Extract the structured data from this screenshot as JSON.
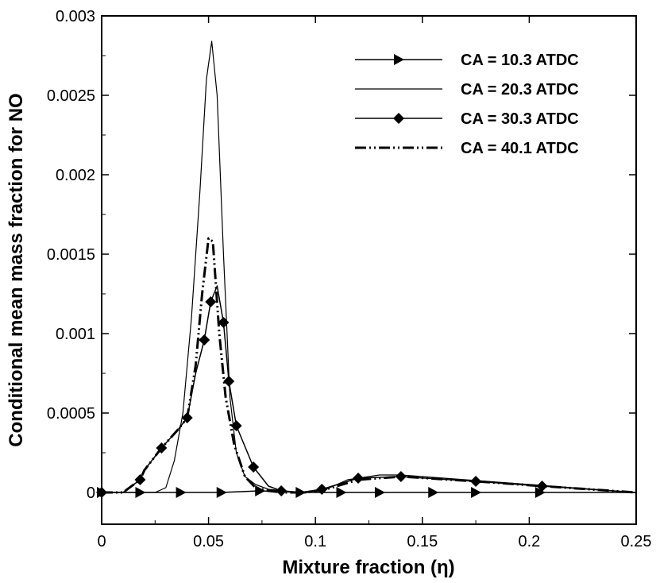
{
  "chart_data": {
    "type": "line",
    "xlabel": "Mixture fraction (η)",
    "ylabel": "Conditional mean mass fraction for NO",
    "xlim": [
      0,
      0.25
    ],
    "ylim": [
      -0.0002,
      0.003
    ],
    "x_ticks": [
      "0",
      "0.05",
      "0.1",
      "0.15",
      "0.2",
      "0.25"
    ],
    "y_ticks": [
      "0",
      "0.0005",
      "0.001",
      "0.0015",
      "0.002",
      "0.0025",
      "0.003"
    ],
    "grid": false,
    "legend_position": "top-right",
    "series": [
      {
        "name": "CA = 10.3 ATDC",
        "line_style": "solid",
        "marker": "triangle-right",
        "x": [
          0,
          0.018,
          0.037,
          0.056,
          0.074,
          0.093,
          0.112,
          0.13,
          0.155,
          0.175,
          0.205,
          0.25
        ],
        "y": [
          0,
          0,
          0,
          0,
          1e-05,
          0,
          0,
          0,
          0,
          0,
          0,
          0
        ],
        "marker_x": [
          0,
          0.018,
          0.037,
          0.056,
          0.074,
          0.093,
          0.112,
          0.13,
          0.155,
          0.175,
          0.205
        ]
      },
      {
        "name": "CA = 20.3 ATDC",
        "line_style": "solid-thin",
        "marker": "none",
        "x": [
          0,
          0.025,
          0.03,
          0.034,
          0.038,
          0.042,
          0.046,
          0.049,
          0.0515,
          0.054,
          0.057,
          0.06,
          0.063,
          0.067,
          0.072,
          0.078,
          0.085,
          0.095,
          0.105,
          0.115,
          0.13,
          0.14,
          0.16,
          0.18,
          0.2,
          0.22,
          0.25
        ],
        "y": [
          0,
          0,
          3e-05,
          0.0002,
          0.0005,
          0.0011,
          0.0019,
          0.0026,
          0.00284,
          0.0025,
          0.0015,
          0.0006,
          0.00025,
          0.0001,
          5e-05,
          2e-05,
          1e-05,
          0,
          2e-05,
          8e-05,
          0.00011,
          0.00011,
          9e-05,
          7e-05,
          5e-05,
          3e-05,
          0
        ]
      },
      {
        "name": "CA = 30.3 ATDC",
        "line_style": "solid",
        "marker": "diamond",
        "x": [
          0,
          0.01,
          0.018,
          0.02,
          0.028,
          0.036,
          0.04,
          0.044,
          0.048,
          0.051,
          0.054,
          0.057,
          0.0595,
          0.063,
          0.071,
          0.078,
          0.084,
          0.093,
          0.103,
          0.12,
          0.14,
          0.175,
          0.206,
          0.25
        ],
        "y": [
          0,
          0,
          8e-05,
          0.00014,
          0.00028,
          0.0004,
          0.00047,
          0.00075,
          0.00096,
          0.0012,
          0.0013,
          0.00107,
          0.0007,
          0.00042,
          0.00016,
          4e-05,
          1e-05,
          0,
          2e-05,
          9e-05,
          0.0001,
          7e-05,
          4e-05,
          0
        ],
        "marker_x": [
          0,
          0.018,
          0.028,
          0.04,
          0.048,
          0.051,
          0.057,
          0.0595,
          0.063,
          0.071,
          0.084,
          0.103,
          0.12,
          0.14,
          0.175,
          0.206
        ]
      },
      {
        "name": "CA = 40.1 ATDC",
        "line_style": "dash-dot-dot",
        "marker": "none",
        "x": [
          0,
          0.01,
          0.018,
          0.02,
          0.028,
          0.036,
          0.04,
          0.044,
          0.047,
          0.05,
          0.052,
          0.055,
          0.058,
          0.062,
          0.067,
          0.072,
          0.078,
          0.085,
          0.095,
          0.105,
          0.12,
          0.14,
          0.175,
          0.206,
          0.25
        ],
        "y": [
          0,
          0,
          8e-05,
          0.00014,
          0.00028,
          0.0004,
          0.00047,
          0.0008,
          0.00125,
          0.0016,
          0.00158,
          0.001,
          0.0006,
          0.0003,
          0.0001,
          3e-05,
          1e-05,
          0,
          0,
          2e-05,
          8e-05,
          0.0001,
          7e-05,
          4e-05,
          0
        ]
      }
    ]
  }
}
